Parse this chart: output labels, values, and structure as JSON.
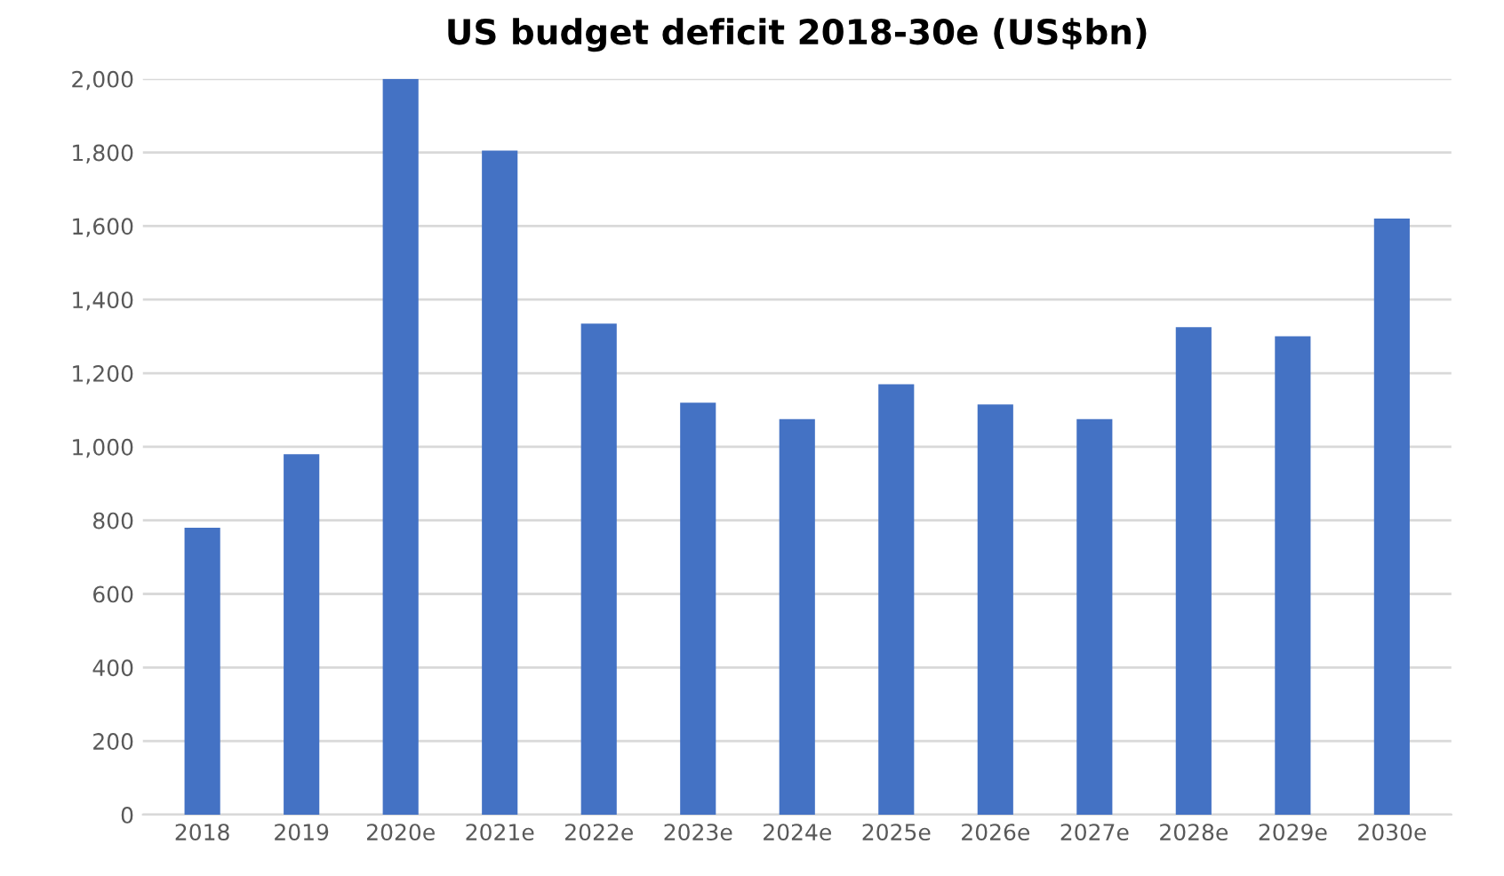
{
  "chart_data": {
    "type": "bar",
    "title": "US budget deficit 2018-30e (US$bn)",
    "categories": [
      "2018",
      "2019",
      "2020e",
      "2021e",
      "2022e",
      "2023e",
      "2024e",
      "2025e",
      "2026e",
      "2027e",
      "2028e",
      "2029e",
      "2030e"
    ],
    "values": [
      780,
      980,
      2000,
      1805,
      1335,
      1120,
      1075,
      1170,
      1115,
      1075,
      1325,
      1300,
      1620
    ],
    "color": "#4472c4",
    "ylim": [
      0,
      2000
    ],
    "yticks": [
      {
        "value": 0,
        "label": "0"
      },
      {
        "value": 200,
        "label": "200"
      },
      {
        "value": 400,
        "label": "400"
      },
      {
        "value": 600,
        "label": "600"
      },
      {
        "value": 800,
        "label": "800"
      },
      {
        "value": 1000,
        "label": "1,000"
      },
      {
        "value": 1200,
        "label": "1,200"
      },
      {
        "value": 1400,
        "label": "1,400"
      },
      {
        "value": 1600,
        "label": "1,600"
      },
      {
        "value": 1800,
        "label": "1,800"
      },
      {
        "value": 2000,
        "label": "2,000"
      }
    ],
    "grid": "y",
    "legend": false
  }
}
